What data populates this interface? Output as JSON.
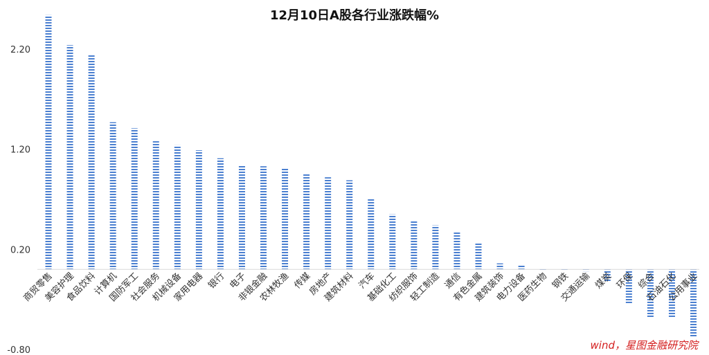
{
  "chart_data": {
    "type": "bar",
    "title": "12月10日A股各行业涨跌幅%",
    "xlabel": "",
    "ylabel": "",
    "ylim": [
      -0.8,
      2.45
    ],
    "yticks": [
      "2.20",
      "1.20",
      "0.20",
      "-0.80"
    ],
    "ytick_values": [
      2.2,
      1.2,
      0.2,
      -0.8
    ],
    "grid": false,
    "legend": "none",
    "bar_color": "#4a7fd0",
    "bar_pattern": "horizontal-stripes",
    "categories": [
      "商贸零售",
      "美容护理",
      "食品饮料",
      "计算机",
      "国防军工",
      "社会服务",
      "机械设备",
      "家用电器",
      "银行",
      "电子",
      "非银金融",
      "农林牧渔",
      "传媒",
      "房地产",
      "建筑材料",
      "汽车",
      "基础化工",
      "纺织服饰",
      "轻工制造",
      "通信",
      "有色金属",
      "建筑装饰",
      "电力设备",
      "医药生物",
      "钢铁",
      "交通运输",
      "煤炭",
      "环保",
      "综合",
      "石油石化",
      "公用事业"
    ],
    "values": [
      2.54,
      2.24,
      2.14,
      1.47,
      1.41,
      1.28,
      1.24,
      1.19,
      1.11,
      1.04,
      1.03,
      1.01,
      0.96,
      0.92,
      0.89,
      0.71,
      0.55,
      0.49,
      0.44,
      0.37,
      0.26,
      0.06,
      0.04,
      -0.01,
      -0.01,
      -0.02,
      -0.12,
      -0.35,
      -0.48,
      -0.48,
      -0.68
    ]
  },
  "watermark": {
    "text": "wind，星图金融研究院",
    "color": "#d42020"
  }
}
